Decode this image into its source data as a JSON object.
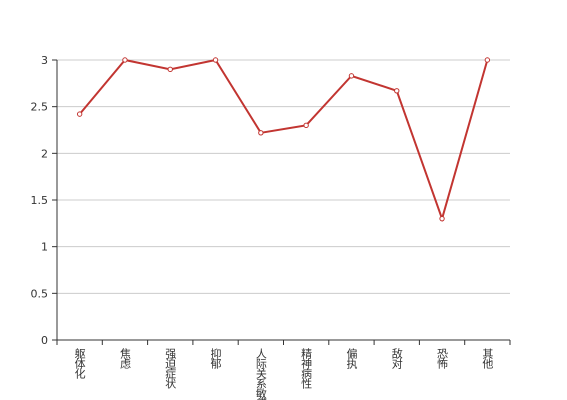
{
  "chart_data": {
    "type": "line",
    "categories": [
      "躯体化",
      "焦虑",
      "强迫症状",
      "抑郁",
      "人际关系敏感",
      "精神病性",
      "偏执",
      "敌对",
      "恐怖",
      "其他"
    ],
    "series": [
      {
        "name": null,
        "color": "#c23531",
        "values": [
          2.42,
          3,
          2.9,
          3,
          2.22,
          2.3,
          2.83,
          2.67,
          1.3,
          3
        ]
      }
    ],
    "ylim": [
      0,
      3
    ],
    "yticks": [
      0,
      0.5,
      1,
      1.5,
      2,
      2.5,
      3
    ],
    "grid": true
  }
}
